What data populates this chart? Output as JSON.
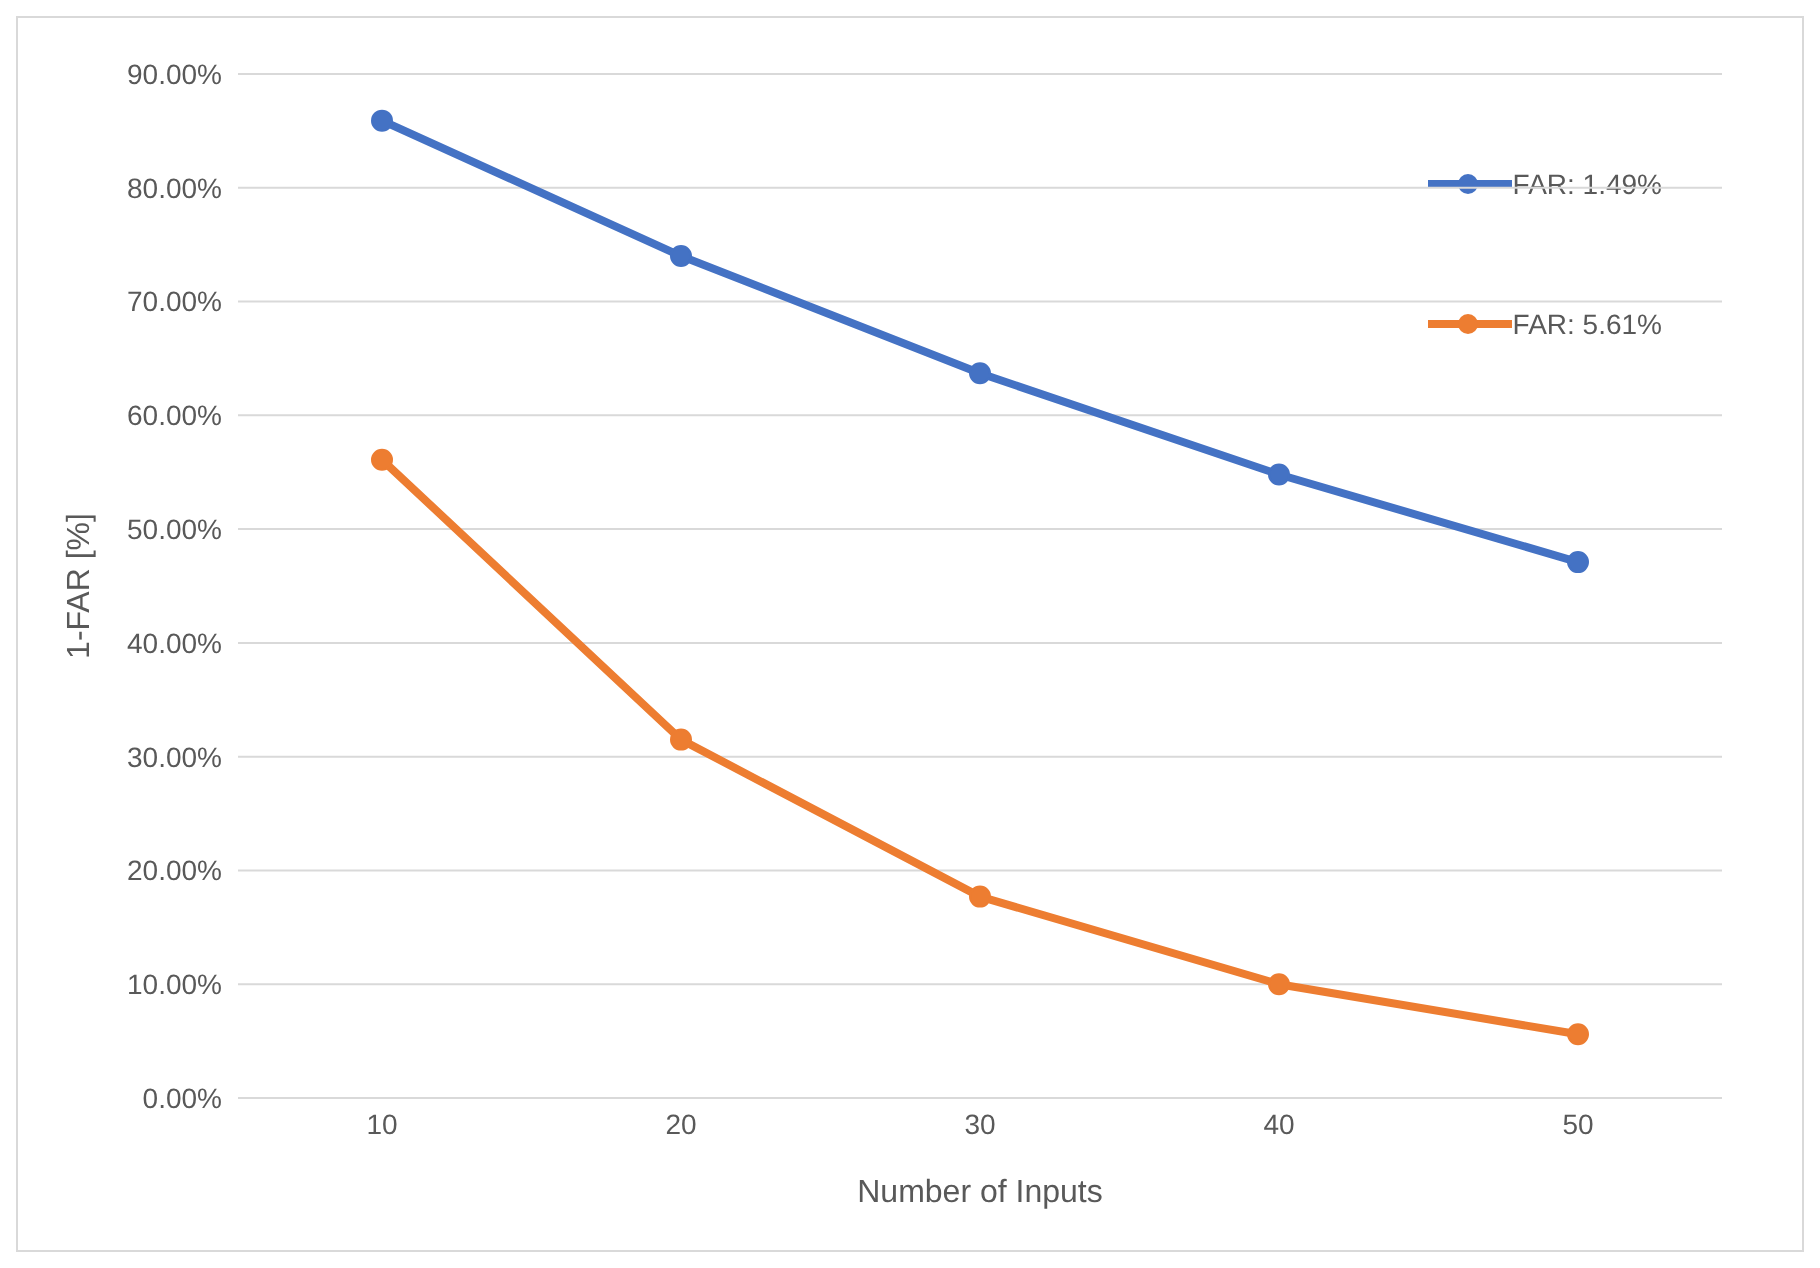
{
  "chart_data": {
    "type": "line",
    "xlabel": "Number of Inputs",
    "ylabel": "1-FAR [%]",
    "categories": [
      "10",
      "20",
      "30",
      "40",
      "50"
    ],
    "series": [
      {
        "name": "FAR: 1.49%",
        "color": "#4472c4",
        "values": [
          85.9,
          74.0,
          63.7,
          54.8,
          47.1
        ]
      },
      {
        "name": "FAR: 5.61%",
        "color": "#ed7d31",
        "values": [
          56.1,
          31.5,
          17.7,
          10.0,
          5.6
        ]
      }
    ],
    "ylim": [
      0,
      90
    ],
    "yticks": [
      {
        "value": 0,
        "label": "0.00%"
      },
      {
        "value": 10,
        "label": "10.00%"
      },
      {
        "value": 20,
        "label": "20.00%"
      },
      {
        "value": 30,
        "label": "30.00%"
      },
      {
        "value": 40,
        "label": "40.00%"
      },
      {
        "value": 50,
        "label": "50.00%"
      },
      {
        "value": 60,
        "label": "60.00%"
      },
      {
        "value": 70,
        "label": "70.00%"
      },
      {
        "value": 80,
        "label": "80.00%"
      },
      {
        "value": 90,
        "label": "90.00%"
      }
    ],
    "grid": "y",
    "legend": "top right",
    "marker": "circle",
    "line_style": "solid"
  }
}
